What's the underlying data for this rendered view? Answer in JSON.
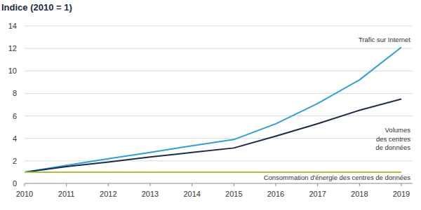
{
  "chart_data": {
    "type": "line",
    "title": "Indice (2010 = 1)",
    "x": [
      2010,
      2011,
      2012,
      2013,
      2014,
      2015,
      2016,
      2017,
      2018,
      2019
    ],
    "xlim": [
      2010,
      2019
    ],
    "xticks": [
      2010,
      2011,
      2012,
      2013,
      2014,
      2015,
      2016,
      2017,
      2018,
      2019
    ],
    "ylim": [
      0,
      14
    ],
    "yticks": [
      0,
      2,
      4,
      6,
      8,
      10,
      12,
      14
    ],
    "grid": true,
    "series": [
      {
        "name": "Trafic sur Internet",
        "color": "#2e9fd8",
        "values": [
          1,
          1.6,
          2.2,
          2.75,
          3.35,
          3.9,
          5.3,
          7.1,
          9.2,
          12.1
        ]
      },
      {
        "name": "Volumes des centres de données",
        "color": "#1b2a4a",
        "values": [
          1,
          1.5,
          1.9,
          2.35,
          2.75,
          3.15,
          4.2,
          5.3,
          6.5,
          7.5
        ]
      },
      {
        "name": "Consommation d'énergie des centres de données",
        "color": "#a9c23f",
        "values": [
          1,
          1,
          1,
          1,
          1,
          1,
          1,
          1,
          1,
          1
        ]
      }
    ]
  }
}
